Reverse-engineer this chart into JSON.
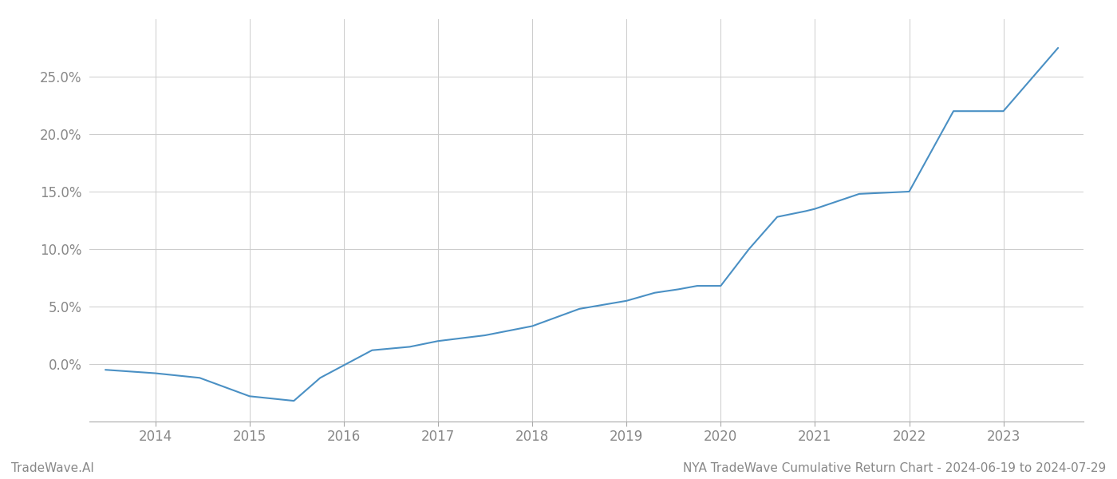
{
  "x_years": [
    2013.47,
    2014.0,
    2014.47,
    2015.0,
    2015.47,
    2015.75,
    2016.3,
    2016.7,
    2017.0,
    2017.5,
    2018.0,
    2018.5,
    2019.0,
    2019.3,
    2019.55,
    2019.75,
    2020.0,
    2020.3,
    2020.6,
    2020.9,
    2021.0,
    2021.47,
    2022.0,
    2022.47,
    2023.0,
    2023.58
  ],
  "y_values": [
    -0.005,
    -0.008,
    -0.012,
    -0.028,
    -0.032,
    -0.012,
    0.012,
    0.015,
    0.02,
    0.025,
    0.033,
    0.048,
    0.055,
    0.062,
    0.065,
    0.068,
    0.068,
    0.1,
    0.128,
    0.133,
    0.135,
    0.148,
    0.15,
    0.22,
    0.22,
    0.275
  ],
  "line_color": "#4a90c4",
  "line_width": 1.5,
  "background_color": "#ffffff",
  "grid_color": "#cccccc",
  "tick_label_color": "#888888",
  "footer_left": "TradeWave.AI",
  "footer_right": "NYA TradeWave Cumulative Return Chart - 2024-06-19 to 2024-07-29",
  "footer_fontsize": 11,
  "yticks": [
    0.0,
    0.05,
    0.1,
    0.15,
    0.2,
    0.25
  ],
  "xlim": [
    2013.3,
    2023.85
  ],
  "ylim": [
    -0.05,
    0.3
  ],
  "xtick_labels": [
    "2014",
    "2015",
    "2016",
    "2017",
    "2018",
    "2019",
    "2020",
    "2021",
    "2022",
    "2023"
  ],
  "xtick_positions": [
    2014,
    2015,
    2016,
    2017,
    2018,
    2019,
    2020,
    2021,
    2022,
    2023
  ]
}
